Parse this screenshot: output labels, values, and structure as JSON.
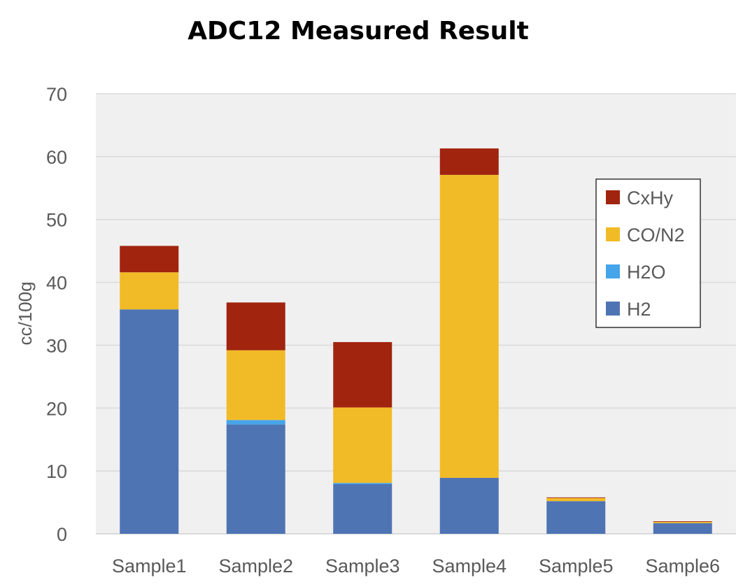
{
  "chart_data": {
    "type": "bar",
    "stacked": true,
    "title": "ADC12 Measured Result",
    "xlabel": "",
    "ylabel": "cc/100g",
    "ylim": [
      0,
      70
    ],
    "yticks": [
      0,
      10,
      20,
      30,
      40,
      50,
      60,
      70
    ],
    "grid": true,
    "legend_position": "right",
    "categories": [
      "Sample1",
      "Sample2",
      "Sample3",
      "Sample4",
      "Sample5",
      "Sample6"
    ],
    "series": [
      {
        "name": "H2",
        "color": "#4f74b3",
        "values": [
          35.7,
          17.4,
          7.9,
          8.9,
          5.2,
          1.7
        ]
      },
      {
        "name": "H2O",
        "color": "#45a4ea",
        "values": [
          0.0,
          0.7,
          0.2,
          0.0,
          0.0,
          0.0
        ]
      },
      {
        "name": "CO/N2",
        "color": "#f1bb27",
        "values": [
          5.9,
          11.1,
          12.0,
          48.2,
          0.5,
          0.2
        ]
      },
      {
        "name": "CxHy",
        "color": "#a1240e",
        "values": [
          4.2,
          7.6,
          10.4,
          4.2,
          0.1,
          0.1
        ]
      }
    ],
    "legend_order": [
      "CxHy",
      "CO/N2",
      "H2O",
      "H2"
    ]
  }
}
